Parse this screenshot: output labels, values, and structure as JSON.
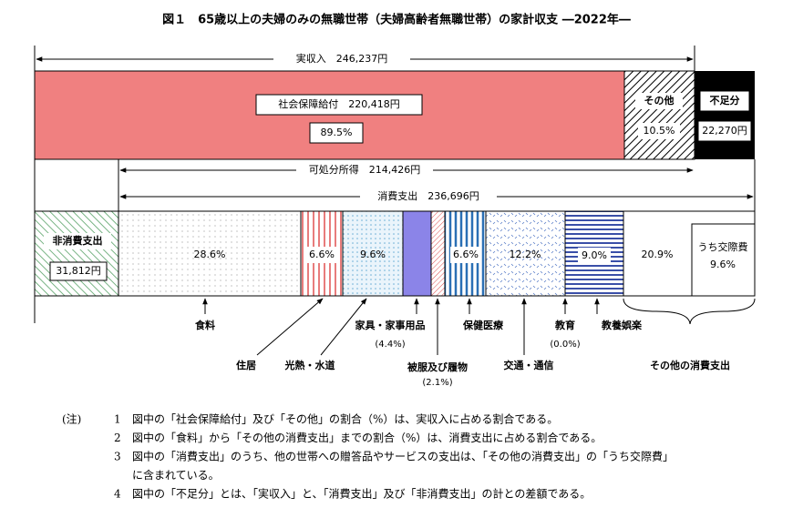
{
  "title": "図１　65歳以上の夫婦のみの無職世帯（夫婦高齢者無職世帯）の家計収支 ―2022年―",
  "arrows": {
    "income": "実収入　246,237円",
    "disposable": "可処分所得　214,426円",
    "consumption": "消費支出　236,696円"
  },
  "income_bar": {
    "social_security": "社会保障給付　220,418円",
    "social_security_pct": "89.5%",
    "other": "その他",
    "other_pct": "10.5%",
    "deficit": "不足分",
    "deficit_amount": "22,270円"
  },
  "spending_bar": {
    "non_consumption": "非消費支出",
    "non_consumption_amount": "31,812円",
    "food_pct": "28.6%",
    "housing_pct": "6.6%",
    "utilities_pct": "9.6%",
    "health_pct": "6.6%",
    "transport_pct": "12.2%",
    "recreation_pct": "9.0%",
    "other_pct": "20.9%",
    "social_label": "うち交際費",
    "social_pct": "9.6%"
  },
  "labels": {
    "food": "食料",
    "housing": "住居",
    "utilities": "光熱・水道",
    "furniture": "家具・家事用品",
    "furniture_pct": "(4.4%)",
    "clothing": "被服及び履物",
    "clothing_pct": "(2.1%)",
    "health": "保健医療",
    "transport": "交通・通信",
    "education": "教育",
    "education_pct": "(0.0%)",
    "recreation": "教養娯楽",
    "other": "その他の消費支出"
  },
  "notes": {
    "marker": "(注)",
    "items": [
      {
        "number": "1",
        "lines": [
          "図中の「社会保障給付」及び「その他」の割合（%）は、実収入に占める割合である。"
        ]
      },
      {
        "number": "2",
        "lines": [
          "図中の「食料」から「その他の消費支出」までの割合（%）は、消費支出に占める割合である。"
        ]
      },
      {
        "number": "3",
        "lines": [
          "図中の「消費支出」のうち、他の世帯への贈答品やサービスの支出は、「その他の消費支出」の「うち交際費」",
          "に含まれている。"
        ]
      },
      {
        "number": "4",
        "lines": [
          "図中の「不足分」とは、「実収入」と、「消費支出」及び「非消費支出」の計との差額である。"
        ]
      }
    ]
  }
}
